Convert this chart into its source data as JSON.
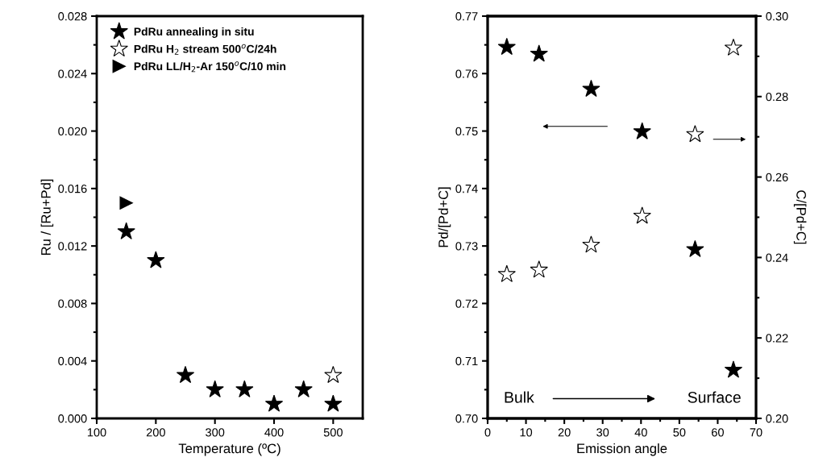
{
  "chart_data": [
    {
      "type": "scatter",
      "xlabel": "Temperature (ºC)",
      "ylabel": "Ru / [Ru+Pd]",
      "xlim": [
        100,
        550
      ],
      "xticks": [
        100,
        200,
        300,
        400,
        500
      ],
      "ylim": [
        0,
        0.028
      ],
      "yticks": [
        {
          "value": 0,
          "label": "0.000"
        },
        0.004,
        0.008,
        0.012,
        0.016,
        {
          "value": 0.02,
          "label": "0.020"
        },
        0.024,
        0.028
      ],
      "legend": "top left",
      "grid": false,
      "series": [
        {
          "name": "PdRu annealing in situ",
          "color": "#000000",
          "marker": "star",
          "x": [
            150,
            200,
            250,
            300,
            350,
            400,
            450,
            500
          ],
          "values": [
            0.013,
            0.011,
            0.003,
            0.002,
            0.002,
            0.001,
            0.002,
            0.001
          ]
        },
        {
          "name": "PdRu H$_{2}$ stream 500$^{o}$C/24h",
          "color": "#ffffff",
          "marker": "star",
          "x": [
            500
          ],
          "values": [
            0.003
          ]
        },
        {
          "name": "PdRu LL/H$_{2}$-Ar 150$^{o}$C/10 min",
          "color": "#000000",
          "marker": "triangle",
          "x": [
            150
          ],
          "values": [
            0.015
          ]
        }
      ]
    },
    {
      "type": "scatter",
      "xlabel": "Emission angle",
      "ylabel": "Pd/[Pd+C]",
      "y2label": "C/[Pd+C]",
      "xlim": [
        0,
        70
      ],
      "xticks": [
        0,
        10,
        20,
        30,
        40,
        50,
        60,
        70
      ],
      "ylim": [
        0.7,
        0.77
      ],
      "yticks": [
        {
          "value": 0.7,
          "label": "0.70"
        },
        0.71,
        0.72,
        0.73,
        0.74,
        0.75,
        0.76,
        0.77
      ],
      "y2lim": [
        0.2,
        0.3
      ],
      "y2ticks": [
        {
          "value": 0.2,
          "label": "0.20"
        },
        0.22,
        0.24,
        0.26,
        0.28,
        {
          "value": 0.3,
          "label": "0.30"
        }
      ],
      "grid": false,
      "annotations": [
        "Bulk",
        "Surface"
      ],
      "series": [
        {
          "color": "#000000",
          "marker": "star",
          "x": [
            5,
            13.4,
            27,
            40.3,
            54.1,
            64.1
          ],
          "values": [
            0.7646,
            0.7634,
            0.7573,
            0.7499,
            0.7294,
            0.7084
          ]
        },
        {
          "color": "#ffffff",
          "marker": "star",
          "axis": "y2",
          "x": [
            5,
            13.4,
            27,
            40.3,
            54.1,
            64.1
          ],
          "values": [
            0.2358,
            0.2369,
            0.2431,
            0.2503,
            0.2706,
            0.2921
          ]
        }
      ]
    }
  ]
}
